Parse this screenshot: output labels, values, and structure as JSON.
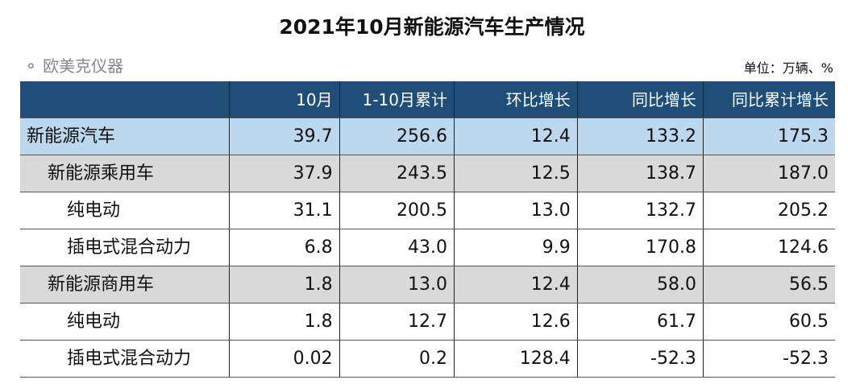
{
  "title": "2021年10月新能源汽车生产情况",
  "unit": "单位：万辆、%",
  "headers": [
    "",
    "10月",
    "1-10月累计",
    "环比增长",
    "同比增长",
    "同比累计增长"
  ],
  "rows": [
    {
      "label": "新能源汽车",
      "level": 0,
      "values": [
        "39.7",
        "256.6",
        "12.4",
        "133.2",
        "175.3"
      ]
    },
    {
      "label": "新能源乘用车",
      "level": 1,
      "values": [
        "37.9",
        "243.5",
        "12.5",
        "138.7",
        "187.0"
      ]
    },
    {
      "label": "纯电动",
      "level": 2,
      "values": [
        "31.1",
        "200.5",
        "13.0",
        "132.7",
        "205.2"
      ]
    },
    {
      "label": "插电式混合动力",
      "level": 2,
      "values": [
        "6.8",
        "43.0",
        "9.9",
        "170.8",
        "124.6"
      ]
    },
    {
      "label": "新能源商用车",
      "level": 1,
      "values": [
        "1.8",
        "13.0",
        "12.4",
        "58.0",
        "56.5"
      ]
    },
    {
      "label": "纯电动",
      "level": 2,
      "values": [
        "1.8",
        "12.7",
        "12.6",
        "61.7",
        "60.5"
      ]
    },
    {
      "label": "插电式混合动力",
      "level": 2,
      "values": [
        "0.02",
        "0.2",
        "128.4",
        "-52.3",
        "-52.3"
      ]
    }
  ],
  "watermark": "欧美克仪器",
  "colors": {
    "header": "#1f4e79",
    "total_row": "#bdd7ee",
    "subtotal_row": "#d9d9d9"
  }
}
